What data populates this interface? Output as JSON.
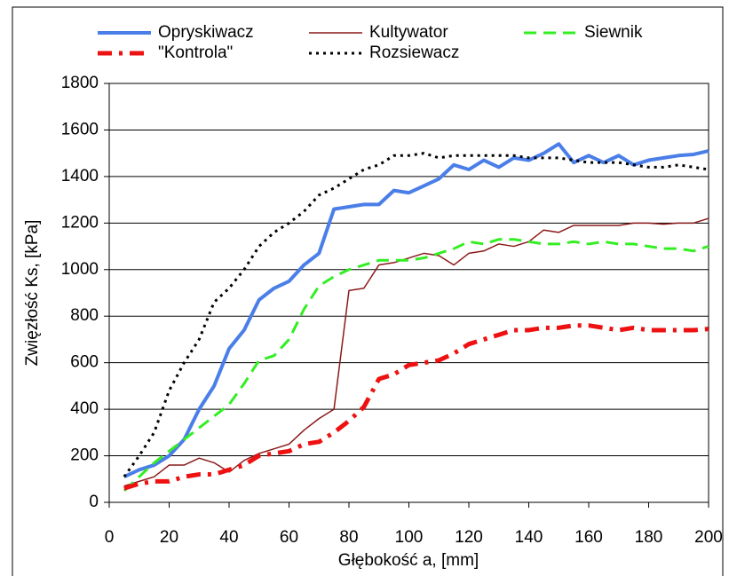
{
  "chart_data": {
    "type": "line",
    "x_label": "Głębokość  a, [mm]",
    "y_label": "Zwięzłość  Ks, [kPa]",
    "x": [
      5,
      10,
      15,
      20,
      25,
      30,
      35,
      40,
      45,
      50,
      55,
      60,
      65,
      70,
      75,
      80,
      85,
      90,
      95,
      100,
      105,
      110,
      115,
      120,
      125,
      130,
      135,
      140,
      145,
      150,
      155,
      160,
      165,
      170,
      175,
      180,
      185,
      190,
      195,
      200
    ],
    "series": [
      {
        "name": "Opryskiwacz",
        "color": "#4a7ee8",
        "linestyle": "solid",
        "values": [
          110,
          140,
          160,
          200,
          270,
          400,
          500,
          660,
          740,
          870,
          920,
          950,
          1020,
          1070,
          1260,
          1270,
          1280,
          1280,
          1340,
          1330,
          1360,
          1390,
          1450,
          1430,
          1470,
          1440,
          1480,
          1470,
          1500,
          1540,
          1460,
          1490,
          1460,
          1490,
          1450,
          1470,
          1480,
          1490,
          1495,
          1510
        ]
      },
      {
        "name": "Kultywator",
        "color": "#8b1a1a",
        "linestyle": "solid-thin",
        "values": [
          70,
          90,
          110,
          160,
          160,
          190,
          170,
          130,
          180,
          210,
          230,
          250,
          310,
          360,
          400,
          910,
          920,
          1020,
          1030,
          1050,
          1070,
          1060,
          1020,
          1070,
          1080,
          1110,
          1100,
          1120,
          1170,
          1160,
          1190,
          1190,
          1190,
          1190,
          1200,
          1200,
          1195,
          1200,
          1200,
          1220
        ]
      },
      {
        "name": "Siewnik",
        "color": "#33ee22",
        "linestyle": "dashed",
        "values": [
          50,
          110,
          170,
          220,
          270,
          320,
          370,
          420,
          510,
          610,
          630,
          700,
          830,
          930,
          970,
          1000,
          1020,
          1040,
          1040,
          1040,
          1050,
          1070,
          1090,
          1120,
          1110,
          1130,
          1130,
          1120,
          1110,
          1110,
          1120,
          1110,
          1120,
          1110,
          1110,
          1100,
          1090,
          1090,
          1080,
          1100
        ]
      },
      {
        "name": "\"Kontrola\"",
        "color": "#ee1111",
        "linestyle": "dashdot",
        "values": [
          60,
          80,
          90,
          90,
          110,
          120,
          120,
          140,
          160,
          200,
          210,
          220,
          250,
          260,
          300,
          350,
          410,
          530,
          550,
          590,
          600,
          610,
          640,
          680,
          700,
          720,
          740,
          740,
          750,
          750,
          760,
          760,
          750,
          740,
          750,
          740,
          740,
          740,
          740,
          745
        ]
      },
      {
        "name": "Rozsiewacz",
        "color": "#000000",
        "linestyle": "dotted",
        "values": [
          110,
          200,
          300,
          480,
          600,
          700,
          860,
          920,
          1000,
          1100,
          1160,
          1200,
          1250,
          1320,
          1350,
          1390,
          1430,
          1450,
          1490,
          1490,
          1500,
          1480,
          1490,
          1490,
          1490,
          1490,
          1490,
          1480,
          1480,
          1480,
          1470,
          1460,
          1460,
          1460,
          1450,
          1440,
          1440,
          1450,
          1440,
          1430
        ]
      }
    ],
    "xlim": [
      0,
      200
    ],
    "xticks": [
      0,
      20,
      40,
      60,
      80,
      100,
      120,
      140,
      160,
      180,
      200
    ],
    "ylim": [
      0,
      1800
    ],
    "yticks": [
      0,
      200,
      400,
      600,
      800,
      1000,
      1200,
      1400,
      1600,
      1800
    ],
    "grid": true
  }
}
